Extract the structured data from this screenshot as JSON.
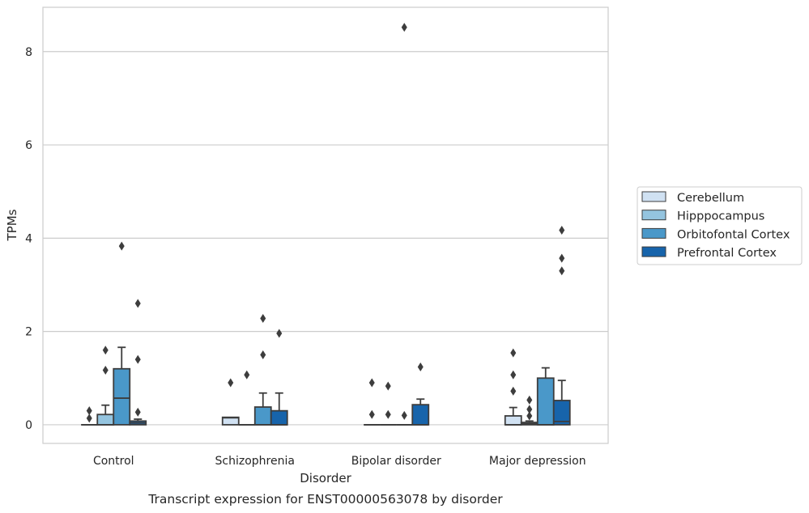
{
  "chart_data": {
    "type": "box",
    "title": "",
    "caption": "Transcript expression for ENST00000563078 by disorder",
    "xlabel": "Disorder",
    "ylabel": "TPMs",
    "ylim": [
      -0.4,
      8.95
    ],
    "yticks": [
      0,
      2,
      4,
      6,
      8
    ],
    "grid": true,
    "legend_position": "right",
    "categories": [
      "Control",
      "Schizophrenia",
      "Bipolar disorder",
      "Major depression"
    ],
    "series": [
      {
        "name": "Cerebellum",
        "color": "#d0e1f2",
        "boxes": [
          {
            "category": "Control",
            "q1": 0,
            "median": 0,
            "q3": 0,
            "whisker_low": 0,
            "whisker_high": 0,
            "outliers": [
              0.3,
              0.14
            ]
          },
          {
            "category": "Schizophrenia",
            "q1": 0,
            "median": 0.15,
            "q3": 0.16,
            "whisker_low": 0,
            "whisker_high": 0.16,
            "outliers": [
              0.9
            ]
          },
          {
            "category": "Bipolar disorder",
            "q1": 0,
            "median": 0,
            "q3": 0,
            "whisker_low": 0,
            "whisker_high": 0,
            "outliers": [
              0.9,
              0.22
            ]
          },
          {
            "category": "Major depression",
            "q1": 0,
            "median": 0,
            "q3": 0.19,
            "whisker_low": 0,
            "whisker_high": 0.37,
            "outliers": [
              1.54,
              1.07,
              0.72
            ]
          }
        ]
      },
      {
        "name": "Hipppocampus",
        "color": "#94c4df",
        "boxes": [
          {
            "category": "Control",
            "q1": 0,
            "median": 0,
            "q3": 0.22,
            "whisker_low": 0,
            "whisker_high": 0.42,
            "outliers": [
              1.6,
              1.17
            ]
          },
          {
            "category": "Schizophrenia",
            "q1": 0,
            "median": 0,
            "q3": 0,
            "whisker_low": 0,
            "whisker_high": 0,
            "outliers": [
              1.07
            ]
          },
          {
            "category": "Bipolar disorder",
            "q1": 0,
            "median": 0,
            "q3": 0,
            "whisker_low": 0,
            "whisker_high": 0,
            "outliers": [
              0.83,
              0.22
            ]
          },
          {
            "category": "Major depression",
            "q1": 0,
            "median": 0.02,
            "q3": 0.05,
            "whisker_low": 0,
            "whisker_high": 0.08,
            "outliers": [
              0.53,
              0.33,
              0.19
            ]
          }
        ]
      },
      {
        "name": "Orbitofontal Cortex",
        "color": "#4a98c9",
        "boxes": [
          {
            "category": "Control",
            "q1": 0,
            "median": 0.57,
            "q3": 1.2,
            "whisker_low": 0,
            "whisker_high": 1.66,
            "outliers": [
              3.83
            ]
          },
          {
            "category": "Schizophrenia",
            "q1": 0,
            "median": 0,
            "q3": 0.38,
            "whisker_low": 0,
            "whisker_high": 0.68,
            "outliers": [
              2.28,
              1.5
            ]
          },
          {
            "category": "Bipolar disorder",
            "q1": 0,
            "median": 0,
            "q3": 0,
            "whisker_low": 0,
            "whisker_high": 0,
            "outliers": [
              8.52,
              0.2
            ]
          },
          {
            "category": "Major depression",
            "q1": 0,
            "median": 0,
            "q3": 1.0,
            "whisker_low": 0,
            "whisker_high": 1.22,
            "outliers": []
          }
        ]
      },
      {
        "name": "Prefrontal Cortex",
        "color": "#1764ab",
        "boxes": [
          {
            "category": "Control",
            "q1": 0,
            "median": 0.04,
            "q3": 0.08,
            "whisker_low": 0,
            "whisker_high": 0.12,
            "outliers": [
              2.6,
              1.4,
              0.27
            ]
          },
          {
            "category": "Schizophrenia",
            "q1": 0,
            "median": 0,
            "q3": 0.3,
            "whisker_low": 0,
            "whisker_high": 0.68,
            "outliers": [
              1.96
            ]
          },
          {
            "category": "Bipolar disorder",
            "q1": 0,
            "median": 0,
            "q3": 0.43,
            "whisker_low": 0,
            "whisker_high": 0.55,
            "outliers": [
              1.24
            ]
          },
          {
            "category": "Major depression",
            "q1": 0,
            "median": 0.07,
            "q3": 0.52,
            "whisker_low": 0,
            "whisker_high": 0.95,
            "outliers": [
              4.17,
              3.57,
              3.3
            ]
          }
        ]
      }
    ]
  }
}
